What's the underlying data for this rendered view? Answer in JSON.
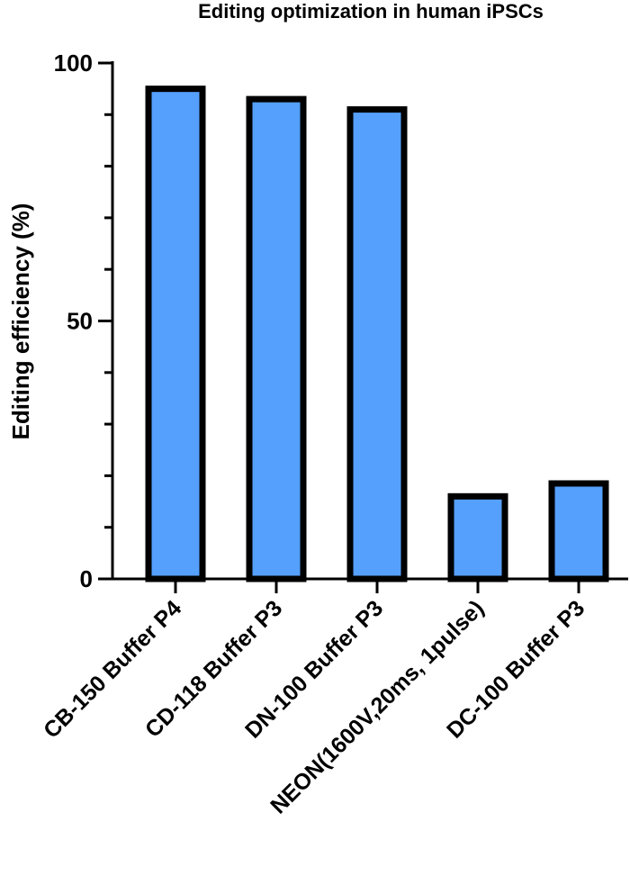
{
  "chart_data": {
    "type": "bar",
    "title": "Editing optimization in human iPSCs",
    "xlabel": "",
    "ylabel": "Editing efficiency (%)",
    "ylim": [
      0,
      100
    ],
    "yticks": [
      0,
      50,
      100
    ],
    "minor_ticks_step": 10,
    "grid": false,
    "categories": [
      "CB-150 Buffer P4",
      "CD-118 Buffer P3",
      "DN-100 Buffer P3",
      "NEON(1600V,20ms, 1pulse)",
      "DC-100 Buffer P3"
    ],
    "values": [
      95,
      93,
      91,
      16,
      18.5
    ],
    "bar_fill_color": "#559ffd",
    "bar_edge_color": "#000000"
  }
}
